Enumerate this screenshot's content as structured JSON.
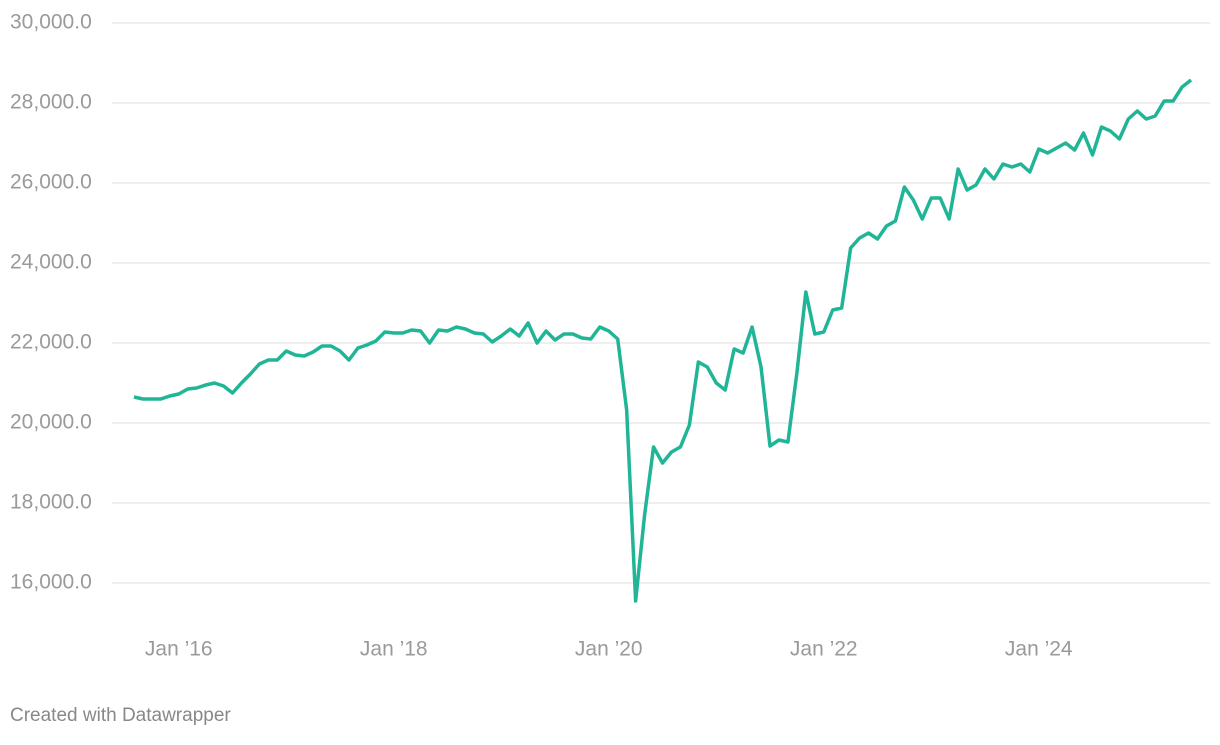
{
  "chart_data": {
    "type": "line",
    "x": [
      "2015-08",
      "2015-09",
      "2015-10",
      "2015-11",
      "2015-12",
      "2016-01",
      "2016-02",
      "2016-03",
      "2016-04",
      "2016-05",
      "2016-06",
      "2016-07",
      "2016-08",
      "2016-09",
      "2016-10",
      "2016-11",
      "2016-12",
      "2017-01",
      "2017-02",
      "2017-03",
      "2017-04",
      "2017-05",
      "2017-06",
      "2017-07",
      "2017-08",
      "2017-09",
      "2017-10",
      "2017-11",
      "2017-12",
      "2018-01",
      "2018-02",
      "2018-03",
      "2018-04",
      "2018-05",
      "2018-06",
      "2018-07",
      "2018-08",
      "2018-09",
      "2018-10",
      "2018-11",
      "2018-12",
      "2019-01",
      "2019-02",
      "2019-03",
      "2019-04",
      "2019-05",
      "2019-06",
      "2019-07",
      "2019-08",
      "2019-09",
      "2019-10",
      "2019-11",
      "2019-12",
      "2020-01",
      "2020-02",
      "2020-03",
      "2020-04",
      "2020-05",
      "2020-06",
      "2020-07",
      "2020-08",
      "2020-09",
      "2020-10",
      "2020-11",
      "2020-12",
      "2021-01",
      "2021-02",
      "2021-03",
      "2021-04",
      "2021-05",
      "2021-06",
      "2021-07",
      "2021-08",
      "2021-09",
      "2021-10",
      "2021-11",
      "2021-12",
      "2022-01",
      "2022-02",
      "2022-03",
      "2022-04",
      "2022-05",
      "2022-06",
      "2022-07",
      "2022-08",
      "2022-09",
      "2022-10",
      "2022-11",
      "2022-12",
      "2023-01",
      "2023-02",
      "2023-03",
      "2023-04",
      "2023-05",
      "2023-06",
      "2023-07",
      "2023-08",
      "2023-09",
      "2023-10",
      "2023-11",
      "2023-12",
      "2024-01",
      "2024-02",
      "2024-03",
      "2024-04",
      "2024-05",
      "2024-06",
      "2024-07",
      "2024-08",
      "2024-09",
      "2024-10",
      "2024-11",
      "2024-12",
      "2025-01",
      "2025-02",
      "2025-03",
      "2025-04",
      "2025-05",
      "2025-06"
    ],
    "series": [
      {
        "color": "#20b597",
        "values": [
          20650,
          20600,
          20600,
          20600,
          20675,
          20725,
          20850,
          20875,
          20950,
          21000,
          20925,
          20750,
          21000,
          21225,
          21475,
          21575,
          21575,
          21800,
          21700,
          21675,
          21775,
          21925,
          21925,
          21800,
          21575,
          21875,
          21950,
          22050,
          22275,
          22250,
          22250,
          22325,
          22300,
          22000,
          22325,
          22300,
          22400,
          22350,
          22250,
          22225,
          22025,
          22175,
          22350,
          22175,
          22500,
          22000,
          22300,
          22075,
          22225,
          22225,
          22125,
          22100,
          22400,
          22300,
          22100,
          20325,
          15550,
          17700,
          19400,
          19000,
          19275,
          19400,
          19950,
          21525,
          21400,
          21000,
          20825,
          21850,
          21750,
          22400,
          21400,
          19425,
          19575,
          19525,
          21250,
          23275,
          22225,
          22275,
          22825,
          22875,
          24375,
          24625,
          24750,
          24600,
          24925,
          25050,
          25900,
          25575,
          25100,
          25625,
          25625,
          25100,
          26350,
          25825,
          25950,
          26350,
          26100,
          26475,
          26400,
          26475,
          26275,
          26850,
          26750,
          26875,
          27000,
          26825,
          27250,
          26700,
          27400,
          27300,
          27100,
          27600,
          27800,
          27600,
          27675,
          28050,
          28050,
          28400,
          28575
        ]
      }
    ],
    "xlim": [
      "2015-07",
      "2025-07"
    ],
    "xticks": [
      {
        "value": "2016-01",
        "label": "Jan ’16"
      },
      {
        "value": "2018-01",
        "label": "Jan ’18"
      },
      {
        "value": "2020-01",
        "label": "Jan ’20"
      },
      {
        "value": "2022-01",
        "label": "Jan ’22"
      },
      {
        "value": "2024-01",
        "label": "Jan ’24"
      }
    ],
    "ylim": [
      15000,
      30000
    ],
    "yticks": [
      {
        "value": 16000,
        "label": "16,000.0"
      },
      {
        "value": 18000,
        "label": "18,000.0"
      },
      {
        "value": 20000,
        "label": "20,000.0"
      },
      {
        "value": 22000,
        "label": "22,000.0"
      },
      {
        "value": 24000,
        "label": "24,000.0"
      },
      {
        "value": 26000,
        "label": "26,000.0"
      },
      {
        "value": 28000,
        "label": "28,000.0"
      },
      {
        "value": 30000,
        "label": "30,000.0"
      }
    ],
    "grid": true,
    "footer": "Created with Datawrapper"
  }
}
